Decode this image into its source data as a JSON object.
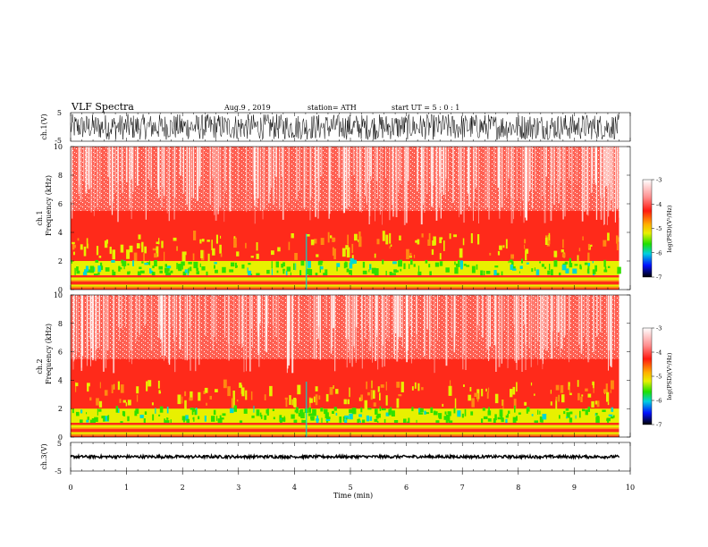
{
  "header": {
    "title": "VLF  Spectra",
    "date": "Aug.9  , 2019",
    "station": "station= ATH",
    "start": "start  UT  =    5  : 0   : 1"
  },
  "chart_data": [
    {
      "type": "line",
      "name": "ch1-waveform",
      "ylabel": "ch.1(V)",
      "ylim": [
        -5,
        5
      ],
      "yticks": [
        "5",
        "-5"
      ],
      "description_values": {
        "amplitude_range": [
          -4.5,
          4.5
        ]
      }
    },
    {
      "type": "heatmap",
      "name": "ch1-spectrogram",
      "ylabel_line1": "ch.1",
      "ylabel_line2": "Frequency  (kHz)",
      "ylim": [
        0,
        10
      ],
      "yticks": [
        "0",
        "2",
        "4",
        "6",
        "8",
        "10"
      ],
      "colorbar": {
        "label": "log(PSD)(V²/Hz)",
        "range": [
          -7,
          -3
        ],
        "ticks": [
          "-3",
          "-4",
          "-5",
          "-6",
          "-7"
        ]
      }
    },
    {
      "type": "heatmap",
      "name": "ch2-spectrogram",
      "ylabel_line1": "ch.2",
      "ylabel_line2": "Frequency  (kHz)",
      "ylim": [
        0,
        10
      ],
      "yticks": [
        "0",
        "2",
        "4",
        "6",
        "8",
        "10"
      ],
      "colorbar": {
        "label": "log(PSD)(V²/Hz)",
        "range": [
          -7,
          -3
        ],
        "ticks": [
          "-3",
          "-4",
          "-5",
          "-6",
          "-7"
        ]
      }
    },
    {
      "type": "line",
      "name": "ch3-waveform",
      "ylabel": "ch.3(V)",
      "ylim": [
        -5,
        5
      ],
      "yticks": [
        "5",
        "-5"
      ],
      "description_values": {
        "amplitude_range": [
          -0.5,
          0.5
        ]
      }
    }
  ],
  "xaxis": {
    "label": "Time  (min)",
    "range": [
      0,
      10
    ],
    "data_end": 9.8,
    "ticks": [
      "0",
      "1",
      "2",
      "3",
      "4",
      "5",
      "6",
      "7",
      "8",
      "9",
      "10"
    ]
  },
  "colors": {
    "white": "#ffffff",
    "red": "#ff2a1a",
    "orange": "#ff8a10",
    "yellow": "#e8f000",
    "green": "#30e000",
    "cyan": "#00d8d0",
    "blue": "#0030ff",
    "black": "#000000"
  }
}
